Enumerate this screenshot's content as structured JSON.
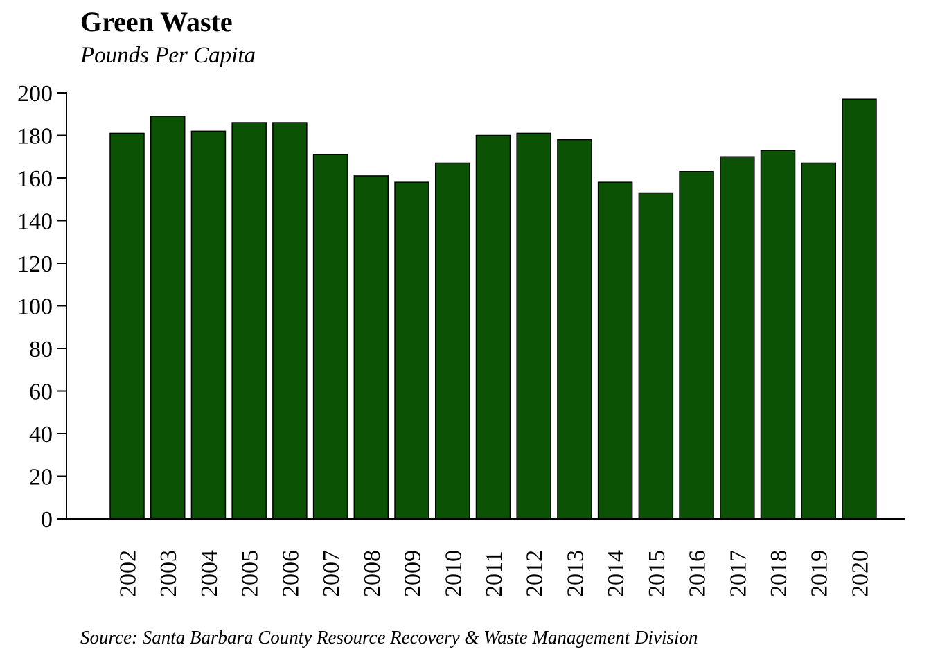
{
  "chart_data": {
    "type": "bar",
    "title": "Green Waste",
    "subtitle": "Pounds Per Capita",
    "source": "Source: Santa Barbara County Resource Recovery & Waste Management Division",
    "categories": [
      "2002",
      "2003",
      "2004",
      "2005",
      "2006",
      "2007",
      "2008",
      "2009",
      "2010",
      "2011",
      "2012",
      "2013",
      "2014",
      "2015",
      "2016",
      "2017",
      "2018",
      "2019",
      "2020"
    ],
    "values": [
      181,
      189,
      182,
      186,
      186,
      171,
      161,
      158,
      167,
      180,
      181,
      178,
      158,
      153,
      163,
      170,
      173,
      167,
      197
    ],
    "ylim": [
      0,
      200
    ],
    "yticks": [
      0,
      20,
      40,
      60,
      80,
      100,
      120,
      140,
      160,
      180,
      200
    ],
    "xlabel": "",
    "ylabel": "",
    "grid": false,
    "bar_color": "#0c5205",
    "bar_edge_color": "#000000"
  }
}
